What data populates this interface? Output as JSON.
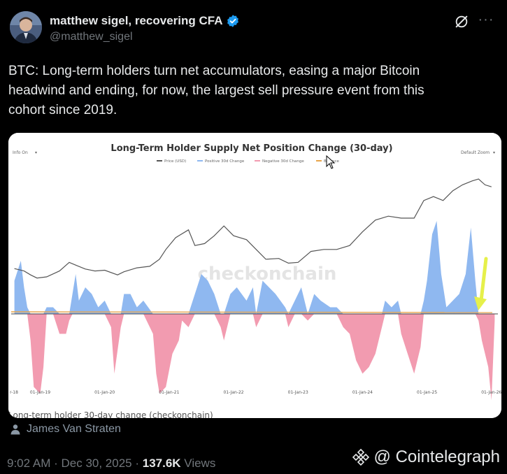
{
  "author": {
    "display_name": "matthew sigel, recovering CFA",
    "handle": "@matthew_sigel"
  },
  "tweet": {
    "line1": "BTC: Long-term holders turn net accumulators, easing a major Bitcoin",
    "line2": "headwind and ending, for now, the largest sell pressure event from this",
    "line3": "cohort since 2019."
  },
  "chart_data": {
    "type": "area",
    "title": "Long-Term Holder Supply Net Position Change (30-day)",
    "top_left_control": "Info On",
    "top_right_control": "Default Zoom",
    "legend": [
      "Price (USD)",
      "Positive 30d Change",
      "Negative 30d Change",
      "Balance"
    ],
    "watermark": "checkonchain",
    "caption": "Long-term holder 30-day change (checkonchain)",
    "x_tick_labels": [
      "r-18",
      "01-Jan-19",
      "01-Jan-20",
      "01-Jan-21",
      "01-Jan-22",
      "01-Jan-23",
      "01-Jan-24",
      "01-Jan-25",
      "01-Jan-26"
    ],
    "colors": {
      "price": "#555555",
      "positive": "#8fb8f0",
      "negative": "#f29bb0",
      "balance": "#e8a54b",
      "arrow": "#e6f04a"
    },
    "price_series": [
      [
        2018.6,
        0.46
      ],
      [
        2018.75,
        0.4
      ],
      [
        2018.85,
        0.3
      ],
      [
        2018.95,
        0.22
      ],
      [
        2019.1,
        0.25
      ],
      [
        2019.3,
        0.4
      ],
      [
        2019.45,
        0.62
      ],
      [
        2019.55,
        0.55
      ],
      [
        2019.7,
        0.45
      ],
      [
        2019.85,
        0.4
      ],
      [
        2020.0,
        0.42
      ],
      [
        2020.2,
        0.3
      ],
      [
        2020.3,
        0.38
      ],
      [
        2020.5,
        0.48
      ],
      [
        2020.7,
        0.52
      ],
      [
        2020.85,
        0.7
      ],
      [
        2020.95,
        0.95
      ],
      [
        2021.1,
        1.25
      ],
      [
        2021.3,
        1.45
      ],
      [
        2021.4,
        1.05
      ],
      [
        2021.55,
        1.1
      ],
      [
        2021.7,
        1.3
      ],
      [
        2021.85,
        1.55
      ],
      [
        2022.0,
        1.3
      ],
      [
        2022.2,
        1.2
      ],
      [
        2022.35,
        0.95
      ],
      [
        2022.5,
        0.7
      ],
      [
        2022.7,
        0.72
      ],
      [
        2022.85,
        0.6
      ],
      [
        2023.0,
        0.62
      ],
      [
        2023.2,
        0.9
      ],
      [
        2023.4,
        0.95
      ],
      [
        2023.6,
        0.95
      ],
      [
        2023.8,
        1.05
      ],
      [
        2024.0,
        1.4
      ],
      [
        2024.2,
        1.7
      ],
      [
        2024.4,
        1.8
      ],
      [
        2024.6,
        1.75
      ],
      [
        2024.8,
        1.75
      ],
      [
        2024.95,
        2.2
      ],
      [
        2025.1,
        2.3
      ],
      [
        2025.25,
        2.2
      ],
      [
        2025.4,
        2.45
      ],
      [
        2025.55,
        2.6
      ],
      [
        2025.7,
        2.7
      ],
      [
        2025.8,
        2.75
      ],
      [
        2025.9,
        2.6
      ],
      [
        2026.0,
        2.55
      ]
    ],
    "change_series": [
      [
        2018.6,
        0.5
      ],
      [
        2018.7,
        0.8
      ],
      [
        2018.75,
        0.4
      ],
      [
        2018.8,
        0.1
      ],
      [
        2018.85,
        -0.4
      ],
      [
        2018.9,
        -1.1
      ],
      [
        2019.0,
        -1.2
      ],
      [
        2019.05,
        -0.8
      ],
      [
        2019.1,
        0.1
      ],
      [
        2019.2,
        0.1
      ],
      [
        2019.3,
        -0.3
      ],
      [
        2019.4,
        -0.3
      ],
      [
        2019.45,
        -0.1
      ],
      [
        2019.5,
        0.3
      ],
      [
        2019.55,
        0.6
      ],
      [
        2019.6,
        0.2
      ],
      [
        2019.7,
        0.4
      ],
      [
        2019.8,
        0.3
      ],
      [
        2019.9,
        0.1
      ],
      [
        2020.0,
        0.2
      ],
      [
        2020.1,
        -0.2
      ],
      [
        2020.15,
        -0.9
      ],
      [
        2020.25,
        -0.2
      ],
      [
        2020.3,
        0.3
      ],
      [
        2020.4,
        0.3
      ],
      [
        2020.5,
        0.1
      ],
      [
        2020.6,
        0.2
      ],
      [
        2020.75,
        -0.3
      ],
      [
        2020.8,
        -0.9
      ],
      [
        2020.85,
        -1.2
      ],
      [
        2020.95,
        -1.1
      ],
      [
        2021.05,
        -0.6
      ],
      [
        2021.15,
        -0.4
      ],
      [
        2021.2,
        -0.1
      ],
      [
        2021.3,
        -0.2
      ],
      [
        2021.4,
        0.3
      ],
      [
        2021.5,
        0.6
      ],
      [
        2021.6,
        0.5
      ],
      [
        2021.7,
        0.3
      ],
      [
        2021.8,
        -0.2
      ],
      [
        2021.85,
        -0.4
      ],
      [
        2021.95,
        0.3
      ],
      [
        2022.05,
        0.4
      ],
      [
        2022.2,
        0.2
      ],
      [
        2022.3,
        0.4
      ],
      [
        2022.35,
        -0.2
      ],
      [
        2022.45,
        0.5
      ],
      [
        2022.55,
        0.4
      ],
      [
        2022.65,
        0.3
      ],
      [
        2022.8,
        0.1
      ],
      [
        2022.85,
        -0.2
      ],
      [
        2022.95,
        0.2
      ],
      [
        2023.05,
        0.4
      ],
      [
        2023.15,
        -0.1
      ],
      [
        2023.25,
        0.3
      ],
      [
        2023.35,
        0.2
      ],
      [
        2023.5,
        0.1
      ],
      [
        2023.6,
        0.1
      ],
      [
        2023.7,
        -0.2
      ],
      [
        2023.8,
        -0.3
      ],
      [
        2023.9,
        -0.7
      ],
      [
        2024.0,
        -0.9
      ],
      [
        2024.1,
        -0.8
      ],
      [
        2024.2,
        -0.6
      ],
      [
        2024.3,
        -0.2
      ],
      [
        2024.35,
        0.2
      ],
      [
        2024.45,
        0.1
      ],
      [
        2024.55,
        0.2
      ],
      [
        2024.6,
        -0.3
      ],
      [
        2024.7,
        -0.6
      ],
      [
        2024.8,
        -0.9
      ],
      [
        2024.9,
        -0.5
      ],
      [
        2024.95,
        0.2
      ],
      [
        2025.0,
        0.5
      ],
      [
        2025.08,
        1.2
      ],
      [
        2025.15,
        1.4
      ],
      [
        2025.22,
        0.6
      ],
      [
        2025.3,
        0.1
      ],
      [
        2025.4,
        0.2
      ],
      [
        2025.5,
        0.3
      ],
      [
        2025.6,
        0.6
      ],
      [
        2025.68,
        1.3
      ],
      [
        2025.75,
        0.5
      ],
      [
        2025.8,
        -0.1
      ],
      [
        2025.85,
        -0.4
      ],
      [
        2025.9,
        -0.6
      ],
      [
        2025.95,
        -0.8
      ],
      [
        2026.0,
        -1.3
      ],
      [
        2026.05,
        -0.1
      ]
    ]
  },
  "credit": {
    "name": "James Van Straten"
  },
  "meta": {
    "time": "9:02 AM",
    "sep1": " · ",
    "date": "Dec 30, 2025",
    "sep2": " · ",
    "views_num": "137.6K",
    "views_label": " Views"
  },
  "watermark_brand": {
    "label": "@ Cointelegraph"
  }
}
